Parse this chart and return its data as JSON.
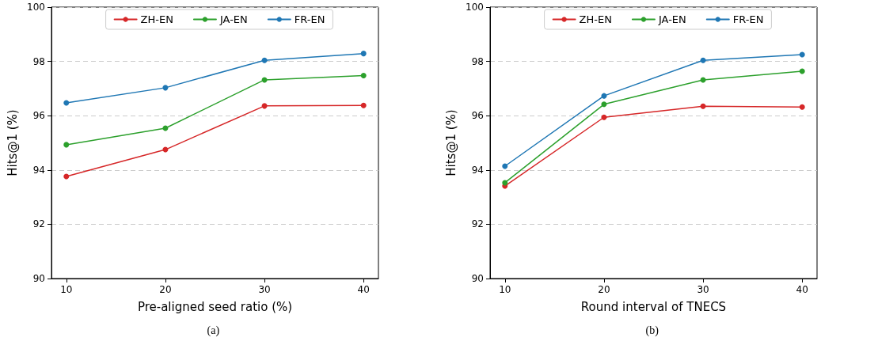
{
  "chart_data": [
    {
      "type": "line",
      "xlabel": "Pre-aligned seed ratio (%)",
      "ylabel": "Hits@1 (%)",
      "annotations": [
        "(a)"
      ],
      "x": [
        10,
        20,
        30,
        40
      ],
      "xlim": [
        8.5,
        41.5
      ],
      "xticks": [
        10,
        20,
        30,
        40
      ],
      "ylim": [
        90,
        100
      ],
      "yticks": [
        90,
        92,
        94,
        96,
        98,
        100
      ],
      "grid": "y",
      "legend": "top",
      "marker": "circle",
      "line_style": "solid",
      "series": [
        {
          "name": "ZH-EN",
          "color": "#d62728",
          "values": [
            93.76,
            94.75,
            96.36,
            96.38
          ]
        },
        {
          "name": "JA-EN",
          "color": "#2ca02c",
          "values": [
            94.93,
            95.54,
            97.32,
            97.48
          ]
        },
        {
          "name": "FR-EN",
          "color": "#1f77b4",
          "values": [
            96.47,
            97.03,
            98.04,
            98.29
          ]
        }
      ]
    },
    {
      "type": "line",
      "xlabel": "Round interval of TNECS",
      "ylabel": "Hits@1 (%)",
      "annotations": [
        "(b)"
      ],
      "x": [
        10,
        20,
        30,
        40
      ],
      "xlim": [
        8.5,
        41.5
      ],
      "xticks": [
        10,
        20,
        30,
        40
      ],
      "ylim": [
        90,
        100
      ],
      "yticks": [
        90,
        92,
        94,
        96,
        98,
        100
      ],
      "grid": "y",
      "legend": "top",
      "marker": "circle",
      "line_style": "solid",
      "series": [
        {
          "name": "ZH-EN",
          "color": "#d62728",
          "values": [
            93.41,
            95.94,
            96.35,
            96.32
          ]
        },
        {
          "name": "JA-EN",
          "color": "#2ca02c",
          "values": [
            93.53,
            96.42,
            97.32,
            97.64
          ]
        },
        {
          "name": "FR-EN",
          "color": "#1f77b4",
          "values": [
            94.14,
            96.73,
            98.04,
            98.25
          ]
        }
      ]
    }
  ]
}
